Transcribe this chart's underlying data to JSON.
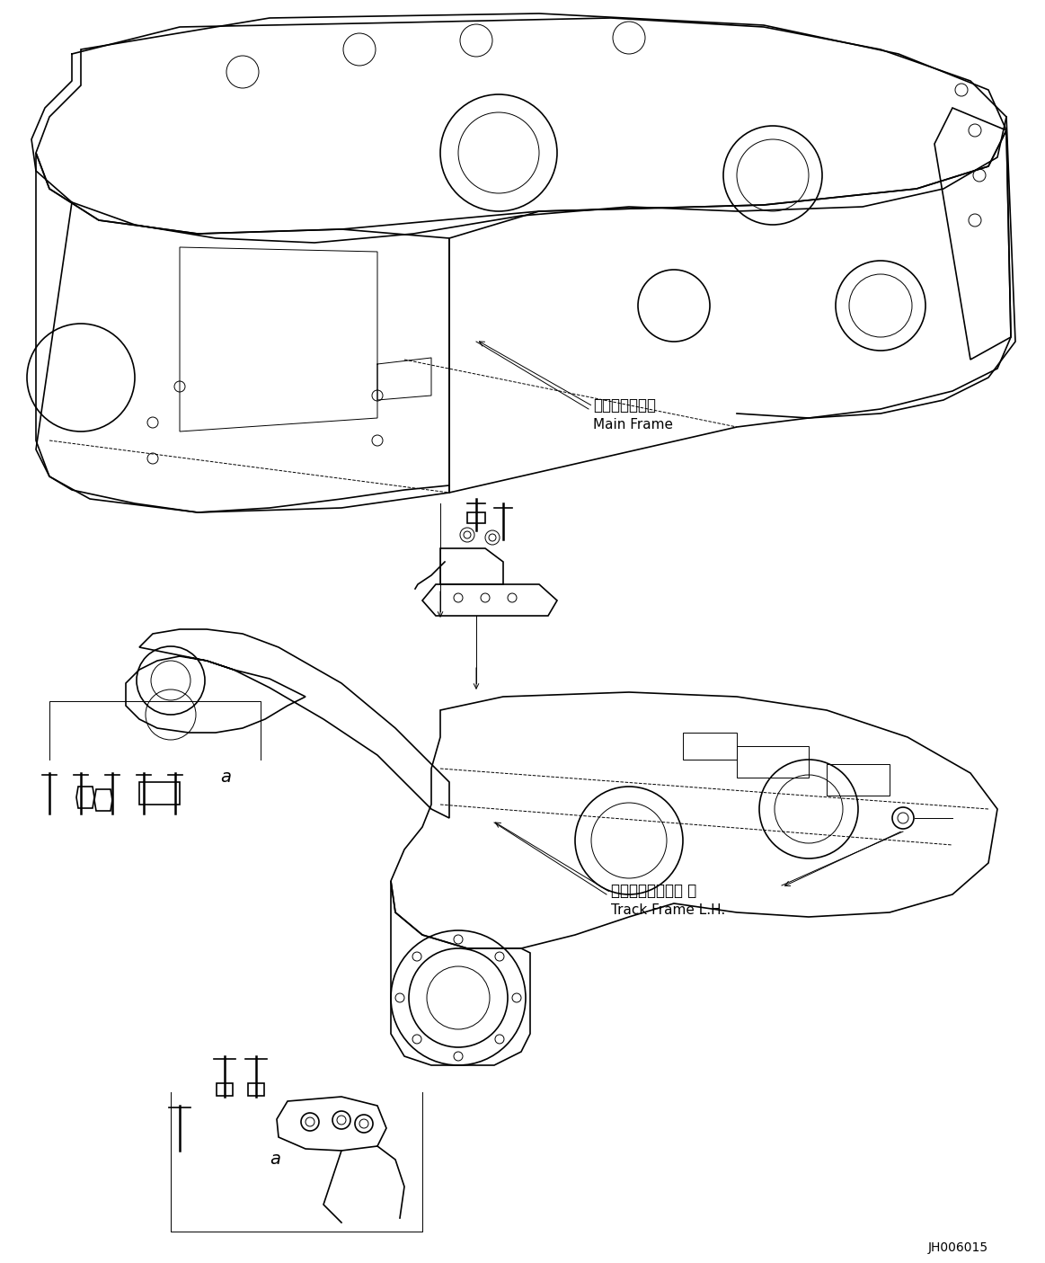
{
  "bg_color": "#ffffff",
  "fig_width": 11.63,
  "fig_height": 14.05,
  "dpi": 100,
  "title": "",
  "watermark": "JH006015",
  "label_main_frame_jp": "メインフレーム",
  "label_main_frame_en": "Main Frame",
  "label_track_frame_jp": "トラックフレーム 左",
  "label_track_frame_en": "Track Frame L.H.",
  "label_a1": "a",
  "label_a2": "a",
  "line_color": "#000000",
  "text_color": "#000000",
  "font_size_label": 11,
  "font_size_watermark": 10
}
